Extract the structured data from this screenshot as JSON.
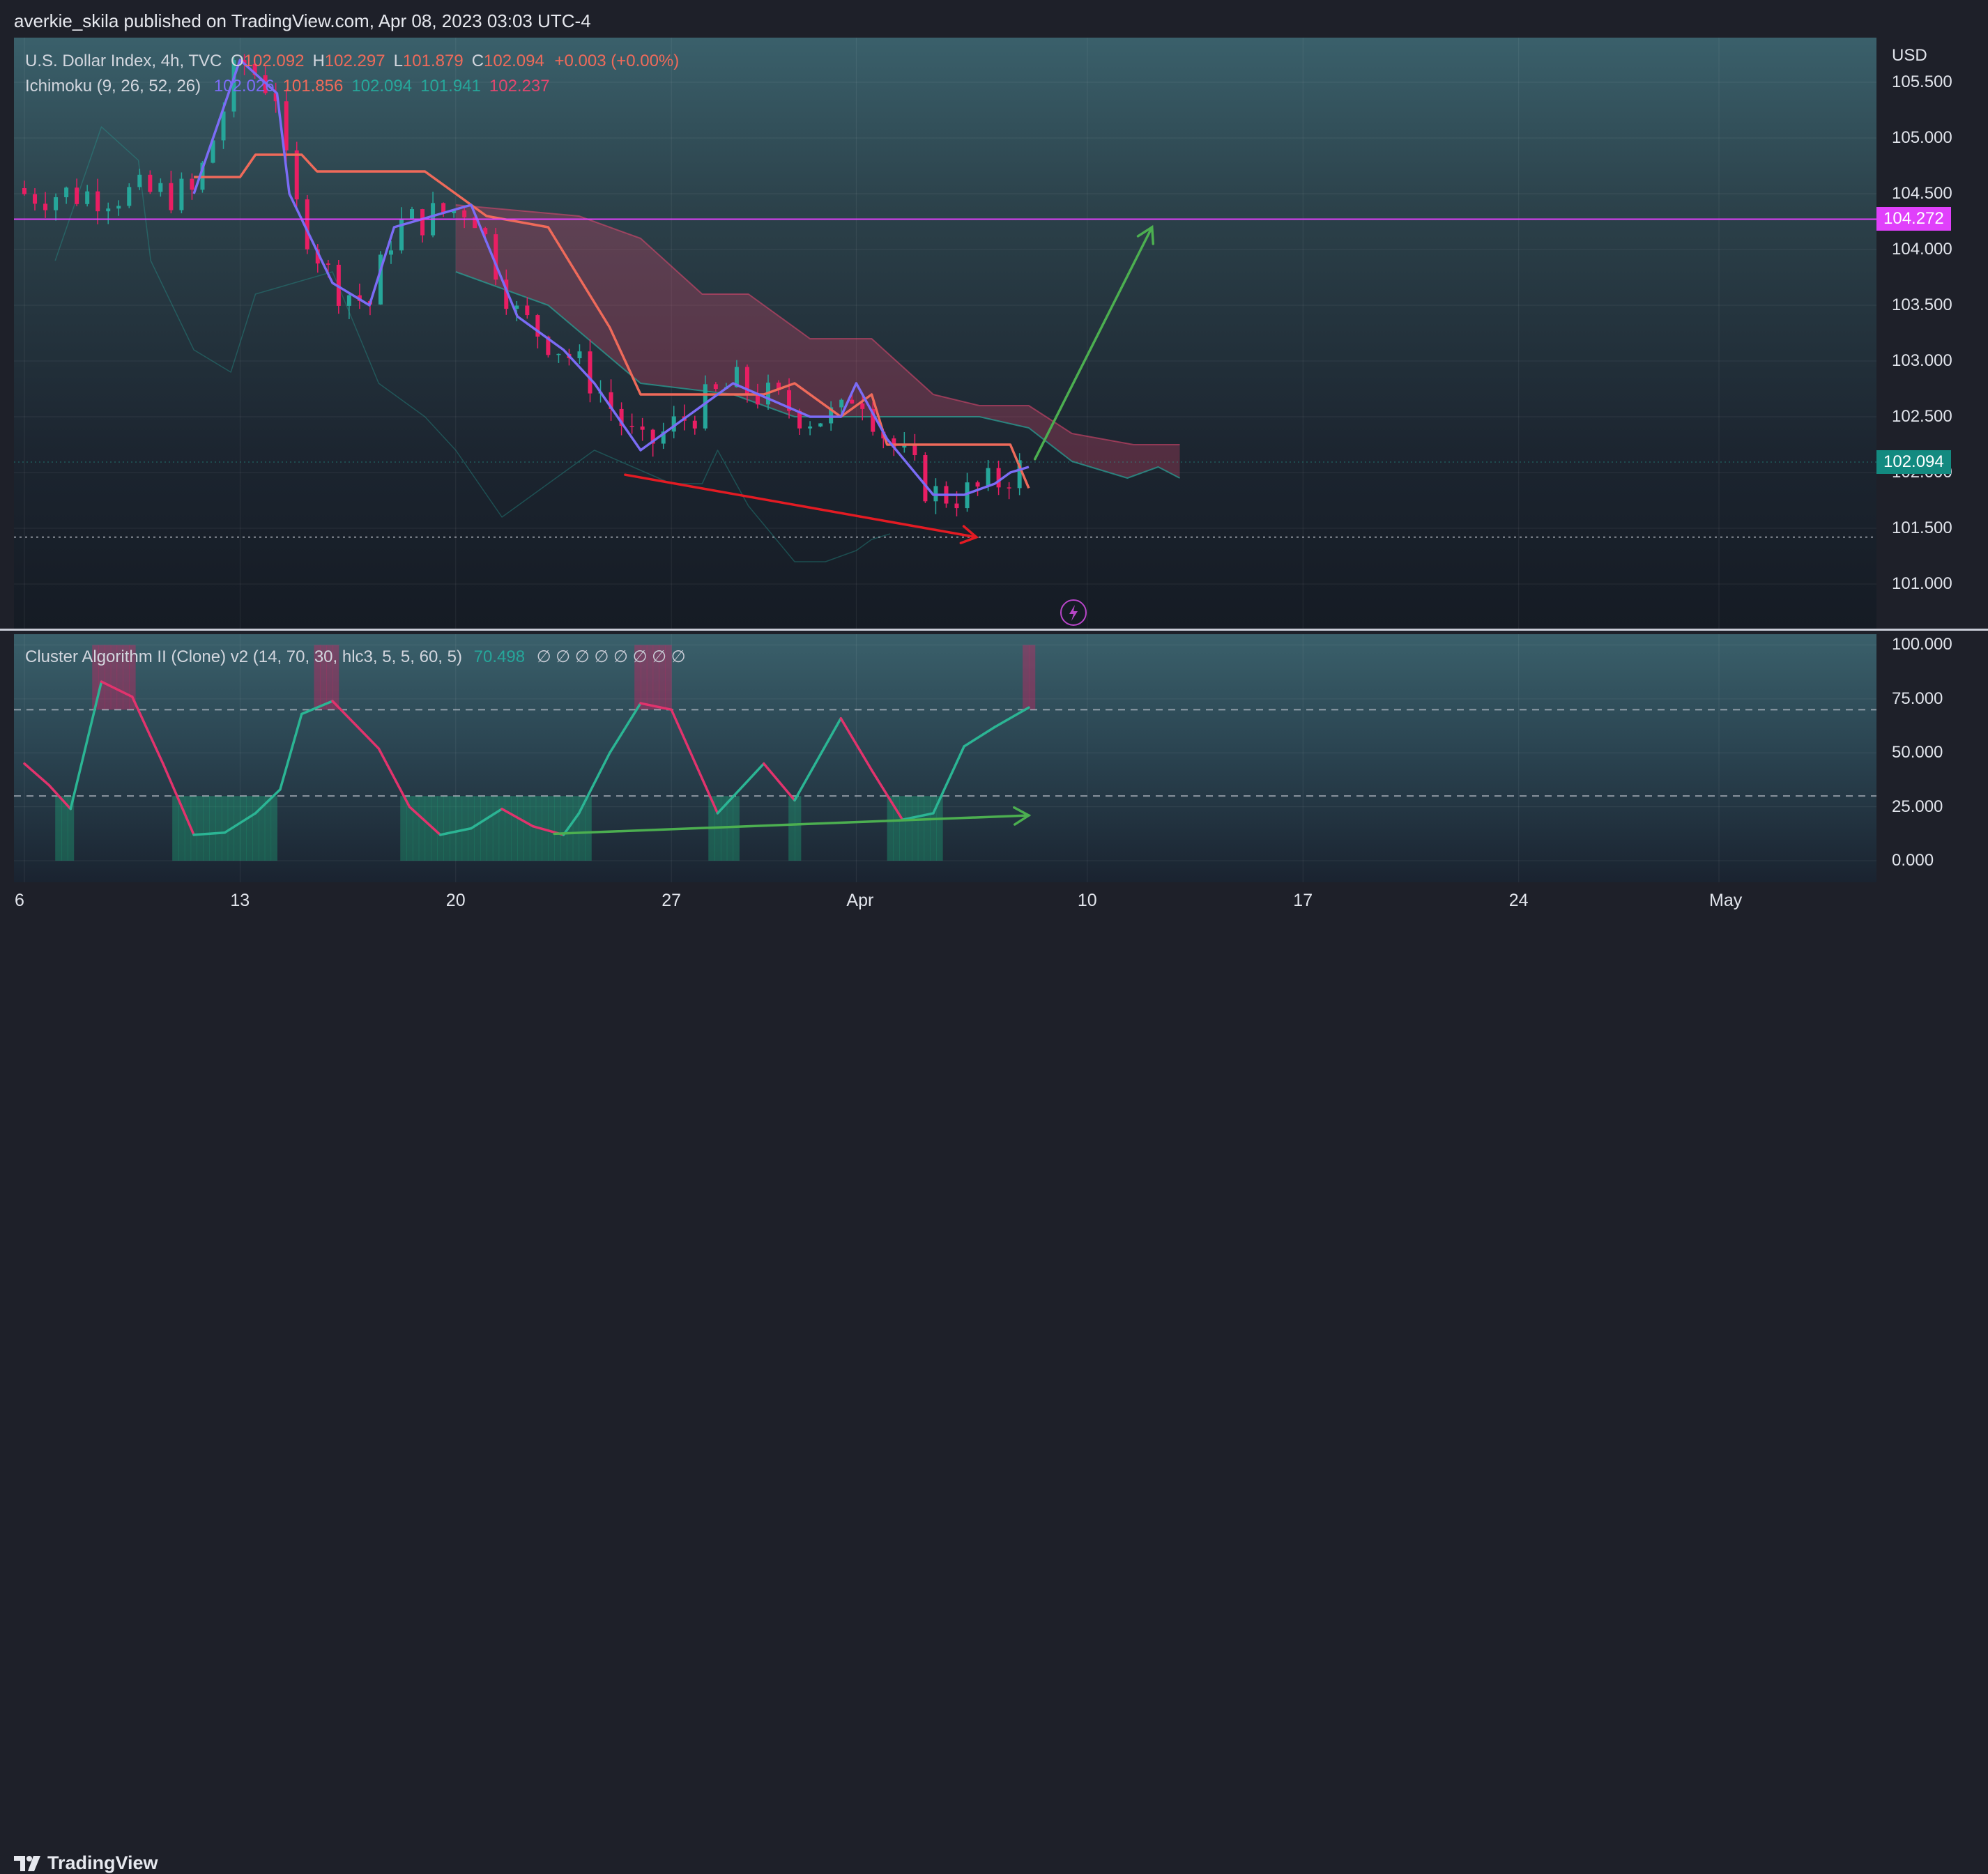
{
  "header": {
    "publisher_line": "averkie_skila published on TradingView.com, Apr 08, 2023 03:03 UTC-4"
  },
  "main_legend": {
    "symbol": "U.S. Dollar Index, 4h, TVC",
    "ohlc": [
      {
        "label": "O",
        "value": "102.092"
      },
      {
        "label": "H",
        "value": "102.297"
      },
      {
        "label": "L",
        "value": "101.879"
      },
      {
        "label": "C",
        "value": "102.094"
      }
    ],
    "change": "+0.003 (+0.00%)",
    "indicator_name": "Ichimoku (9, 26, 52, 26)",
    "indicator_values": [
      {
        "value": "102.026",
        "color": "#7b6cf6"
      },
      {
        "value": "101.856",
        "color": "#ef6a5a"
      },
      {
        "value": "102.094",
        "color": "#26a69a"
      },
      {
        "value": "101.941",
        "color": "#26a69a"
      },
      {
        "value": "102.237",
        "color": "#e2476f"
      }
    ]
  },
  "osc_legend": {
    "name": "Cluster Algorithm II (Clone) v2 (14, 70, 30, hlc3, 5, 5, 60, 5)",
    "value": "70.498",
    "na_values": "∅ ∅ ∅ ∅ ∅ ∅ ∅ ∅"
  },
  "price_axis": {
    "currency": "USD",
    "ticks": [
      "105.500",
      "105.000",
      "104.500",
      "104.000",
      "103.500",
      "103.000",
      "102.500",
      "102.000",
      "101.500",
      "101.000"
    ],
    "marker_price": "104.272",
    "last_price": "102.094"
  },
  "osc_axis": {
    "ticks": [
      "100.000",
      "75.000",
      "50.000",
      "25.000",
      "0.000"
    ]
  },
  "time_axis": {
    "labels": [
      "6",
      "13",
      "20",
      "27",
      "Apr",
      "10",
      "17",
      "24",
      "May"
    ]
  },
  "footer": {
    "brand": "TradingView"
  },
  "colors": {
    "background": "#1e2029",
    "bull": "#26a69a",
    "bear": "#e91e63",
    "tenkan": "#7b6cf6",
    "kijun": "#ef6a5a",
    "cloud_bear": "#e2476f",
    "marker_line": "#e040fb",
    "arrow_green": "#4caf50",
    "arrow_red": "#e31b23"
  },
  "chart_data": [
    {
      "type": "candlestick",
      "title": "U.S. Dollar Index, 4h, TVC",
      "ylabel": "USD",
      "ylim": [
        100.6,
        105.9
      ],
      "x_ticks": [
        "6",
        "13",
        "20",
        "27",
        "Apr",
        "10",
        "17",
        "24",
        "May"
      ],
      "overlays": {
        "horizontal_line": 104.272,
        "last_price": 102.094,
        "tenkan": [
          [
            5.5,
            104.5
          ],
          [
            7,
            105.7
          ],
          [
            8.2,
            105.4
          ],
          [
            8.6,
            104.5
          ],
          [
            10,
            103.7
          ],
          [
            11.2,
            103.5
          ],
          [
            12,
            104.2
          ],
          [
            14.5,
            104.4
          ],
          [
            16,
            103.4
          ],
          [
            17.5,
            103.1
          ],
          [
            18.5,
            102.8
          ],
          [
            20,
            102.2
          ],
          [
            21,
            102.4
          ],
          [
            23,
            102.8
          ],
          [
            25.5,
            102.5
          ],
          [
            26.5,
            102.5
          ],
          [
            27,
            102.8
          ],
          [
            28,
            102.3
          ],
          [
            29.5,
            101.8
          ],
          [
            30.5,
            101.8
          ],
          [
            31.5,
            101.9
          ],
          [
            32,
            102.0
          ],
          [
            32.6,
            102.05
          ]
        ],
        "kijun": [
          [
            5.5,
            104.65
          ],
          [
            7,
            104.65
          ],
          [
            7.5,
            104.85
          ],
          [
            9,
            104.85
          ],
          [
            9.5,
            104.7
          ],
          [
            11,
            104.7
          ],
          [
            11.5,
            104.7
          ],
          [
            13,
            104.7
          ],
          [
            13.5,
            104.6
          ],
          [
            15,
            104.3
          ],
          [
            17,
            104.2
          ],
          [
            19,
            103.3
          ],
          [
            20,
            102.7
          ],
          [
            21,
            102.7
          ],
          [
            22,
            102.7
          ],
          [
            24,
            102.7
          ],
          [
            25,
            102.8
          ],
          [
            26.5,
            102.5
          ],
          [
            27.5,
            102.7
          ],
          [
            28,
            102.25
          ],
          [
            30,
            102.25
          ],
          [
            32,
            102.25
          ],
          [
            32.6,
            101.86
          ]
        ],
        "span_a": [
          [
            14,
            103.8
          ],
          [
            17,
            103.5
          ],
          [
            20,
            102.8
          ],
          [
            23,
            102.7
          ],
          [
            25,
            102.5
          ],
          [
            28,
            102.5
          ],
          [
            31,
            102.5
          ],
          [
            32.6,
            102.4
          ],
          [
            34,
            102.1
          ],
          [
            35.8,
            101.95
          ],
          [
            36.8,
            102.05
          ],
          [
            37.5,
            101.95
          ]
        ],
        "span_b": [
          [
            14,
            104.4
          ],
          [
            18,
            104.3
          ],
          [
            20,
            104.1
          ],
          [
            22,
            103.6
          ],
          [
            23.5,
            103.6
          ],
          [
            25.5,
            103.2
          ],
          [
            27.5,
            103.2
          ],
          [
            29.5,
            102.7
          ],
          [
            31,
            102.6
          ],
          [
            32.6,
            102.6
          ],
          [
            34,
            102.35
          ],
          [
            36,
            102.25
          ],
          [
            37.5,
            102.25
          ]
        ],
        "annotations": [
          {
            "type": "arrow",
            "color": "red",
            "from": [
              19.5,
              101.98
            ],
            "to": [
              30.9,
              101.42
            ]
          },
          {
            "type": "arrow",
            "color": "green",
            "from": [
              32.8,
              102.12
            ],
            "to": [
              36.6,
              104.2
            ]
          }
        ]
      }
    },
    {
      "type": "line",
      "title": "Cluster Algorithm II (Clone) v2 (14, 70, 30, hlc3, 5, 5, 60, 5)",
      "ylim": [
        -10,
        105
      ],
      "levels": [
        70,
        30
      ],
      "x": [
        0,
        0.8,
        1.5,
        2.5,
        3.5,
        4.5,
        5.5,
        6.5,
        7.5,
        8.3,
        9,
        10,
        11.5,
        12.5,
        13.5,
        14.5,
        15.5,
        16.5,
        17.5,
        18,
        19,
        20,
        21,
        22.5,
        24,
        25,
        26.5,
        27.5,
        28.5,
        29.5,
        30.5,
        31.5,
        32.6
      ],
      "values": [
        45,
        35,
        24,
        83,
        76,
        45,
        12,
        13,
        22,
        33,
        68,
        74,
        52,
        25,
        12,
        15,
        24,
        16,
        12,
        22,
        50,
        73,
        70,
        22,
        45,
        28,
        66,
        42,
        19,
        22,
        53,
        62,
        71
      ],
      "last_value": 70.498,
      "annotations": [
        {
          "type": "arrow",
          "color": "green",
          "from": [
            17.2,
            12.5
          ],
          "to": [
            32.6,
            21
          ]
        }
      ]
    }
  ]
}
